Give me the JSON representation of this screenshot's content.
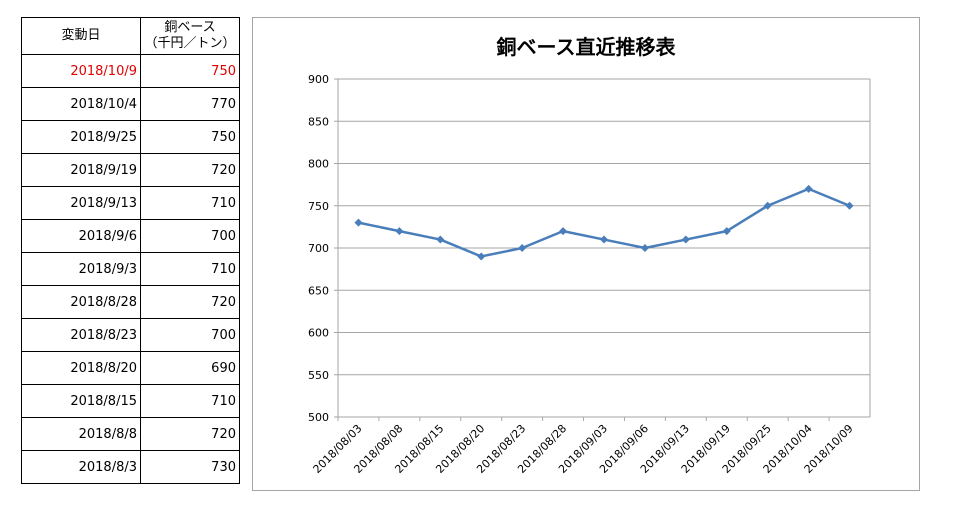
{
  "table": {
    "header_date": "変動日",
    "header_value_line1": "銅ベース",
    "header_value_line2": "（千円／トン）",
    "highlight_color": "#e00000",
    "rows": [
      {
        "date": "2018/10/9",
        "value": "750",
        "highlight": true
      },
      {
        "date": "2018/10/4",
        "value": "770",
        "highlight": false
      },
      {
        "date": "2018/9/25",
        "value": "750",
        "highlight": false
      },
      {
        "date": "2018/9/19",
        "value": "720",
        "highlight": false
      },
      {
        "date": "2018/9/13",
        "value": "710",
        "highlight": false
      },
      {
        "date": "2018/9/6",
        "value": "700",
        "highlight": false
      },
      {
        "date": "2018/9/3",
        "value": "710",
        "highlight": false
      },
      {
        "date": "2018/8/28",
        "value": "720",
        "highlight": false
      },
      {
        "date": "2018/8/23",
        "value": "700",
        "highlight": false
      },
      {
        "date": "2018/8/20",
        "value": "690",
        "highlight": false
      },
      {
        "date": "2018/8/15",
        "value": "710",
        "highlight": false
      },
      {
        "date": "2018/8/8",
        "value": "720",
        "highlight": false
      },
      {
        "date": "2018/8/3",
        "value": "730",
        "highlight": false
      }
    ]
  },
  "chart_data": {
    "type": "line",
    "title": "銅ベース直近推移表",
    "xlabel": "",
    "ylabel": "",
    "categories": [
      "2018/08/03",
      "2018/08/08",
      "2018/08/15",
      "2018/08/20",
      "2018/08/23",
      "2018/08/28",
      "2018/09/03",
      "2018/09/06",
      "2018/09/13",
      "2018/09/19",
      "2018/09/25",
      "2018/10/04",
      "2018/10/09"
    ],
    "series": [
      {
        "values": [
          730,
          720,
          710,
          690,
          700,
          720,
          710,
          700,
          710,
          720,
          750,
          770,
          750
        ],
        "color": "#4a7ebb",
        "marker": "diamond"
      }
    ],
    "ylim": [
      500,
      900
    ],
    "yticks": [
      500,
      550,
      600,
      650,
      700,
      750,
      800,
      850,
      900
    ],
    "grid": true,
    "legend": "none"
  }
}
